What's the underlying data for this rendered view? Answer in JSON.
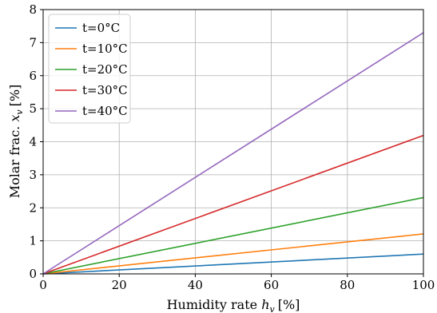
{
  "chart_data": {
    "type": "line",
    "title": "",
    "xlabel": "Humidity rate",
    "xlabel_symbol": "h",
    "xlabel_symbol_sub": "v",
    "xlabel_unit": "[%]",
    "ylabel": "Molar frac.",
    "ylabel_symbol": "x",
    "ylabel_symbol_sub": "v",
    "ylabel_unit": "[%]",
    "xlim": [
      0,
      100
    ],
    "ylim": [
      0,
      8
    ],
    "xticks": [
      "0",
      "20",
      "40",
      "60",
      "80",
      "100"
    ],
    "yticks": [
      "0",
      "1",
      "2",
      "3",
      "4",
      "5",
      "6",
      "7",
      "8"
    ],
    "grid": true,
    "legend_position": "top-left",
    "series": [
      {
        "name": "t=0°C",
        "color": "#1f77b4",
        "x": [
          0,
          100
        ],
        "values": [
          0,
          0.6
        ]
      },
      {
        "name": "t=10°C",
        "color": "#ff7f0e",
        "x": [
          0,
          100
        ],
        "values": [
          0,
          1.21
        ]
      },
      {
        "name": "t=20°C",
        "color": "#2ca02c",
        "x": [
          0,
          100
        ],
        "values": [
          0,
          2.31
        ]
      },
      {
        "name": "t=30°C",
        "color": "#d62728",
        "x": [
          0,
          100
        ],
        "values": [
          0,
          4.19
        ]
      },
      {
        "name": "t=40°C",
        "color": "#9467bd",
        "x": [
          0,
          100
        ],
        "values": [
          0,
          7.3
        ]
      }
    ]
  }
}
